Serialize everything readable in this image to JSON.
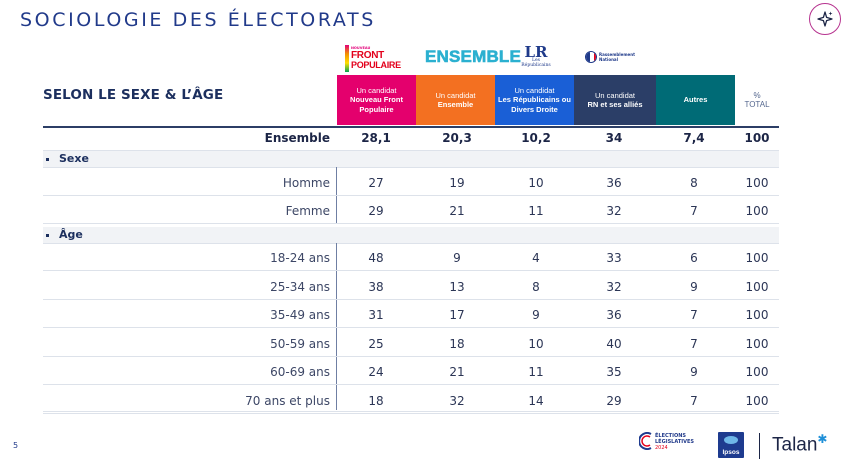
{
  "page": {
    "title": "SOCIOLOGIE DES ÉLECTORATS",
    "section_title": "SELON LE SEXE & L’ÂGE",
    "page_number": "5"
  },
  "logos": {
    "nfp": {
      "small": "NOUVEAU",
      "line1": "FRONT",
      "line2": "POPULAIRE"
    },
    "ensemble": "ENSEMBLE",
    "lr": {
      "mark": "LR",
      "text": "Les Républicains"
    },
    "rn": {
      "line1": "Rassemblement",
      "line2": "National"
    }
  },
  "columns": [
    {
      "l1": "Un candidat",
      "l2": "Nouveau Front Populaire",
      "color": "#e4006d"
    },
    {
      "l1": "Un candidat",
      "l2": "Ensemble",
      "color": "#f37021"
    },
    {
      "l1": "Un candidat",
      "l2": "Les Républicains ou Divers Droite",
      "color": "#1a5fd6"
    },
    {
      "l1": "Un candidat",
      "l2": "RN et ses alliés",
      "color": "#2b3e67"
    },
    {
      "l1": "",
      "l2": "Autres",
      "color": "#006b76"
    },
    {
      "l1": "%",
      "l2": "TOTAL",
      "color": "#ffffff"
    }
  ],
  "ensemble_row": {
    "label": "Ensemble",
    "values": [
      "28,1",
      "20,3",
      "10,2",
      "34",
      "7,4",
      "100"
    ]
  },
  "groups": [
    {
      "label": "Sexe",
      "rows": [
        {
          "label": "Homme",
          "values": [
            "27",
            "19",
            "10",
            "36",
            "8",
            "100"
          ]
        },
        {
          "label": "Femme",
          "values": [
            "29",
            "21",
            "11",
            "32",
            "7",
            "100"
          ]
        }
      ]
    },
    {
      "label": "Âge",
      "rows": [
        {
          "label": "18-24 ans",
          "values": [
            "48",
            "9",
            "4",
            "33",
            "6",
            "100"
          ]
        },
        {
          "label": "25-34 ans",
          "values": [
            "38",
            "13",
            "8",
            "32",
            "9",
            "100"
          ]
        },
        {
          "label": "35-49 ans",
          "values": [
            "31",
            "17",
            "9",
            "36",
            "7",
            "100"
          ]
        },
        {
          "label": "50-59 ans",
          "values": [
            "25",
            "18",
            "10",
            "40",
            "7",
            "100"
          ]
        },
        {
          "label": "60-69 ans",
          "values": [
            "24",
            "21",
            "11",
            "35",
            "9",
            "100"
          ]
        },
        {
          "label": "70 ans et plus",
          "values": [
            "18",
            "32",
            "14",
            "29",
            "7",
            "100"
          ]
        }
      ]
    }
  ],
  "footer": {
    "elections": {
      "line1": "ÉLECTIONS",
      "line2": "LÉGISLATIVES",
      "line3": "2024"
    },
    "ipsos": "Ipsos",
    "talan": "Talan"
  }
}
